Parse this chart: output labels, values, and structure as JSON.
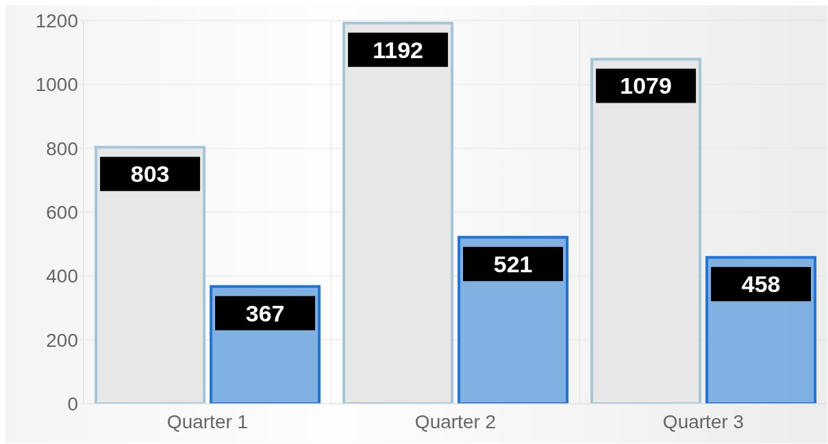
{
  "chart_data": {
    "type": "bar",
    "categories": [
      "Quarter 1",
      "Quarter 2",
      "Quarter 3"
    ],
    "series": [
      {
        "color": "#e6e6e6",
        "values": [
          803,
          1192,
          1079
        ]
      },
      {
        "color": "#7aade0",
        "values": [
          367,
          521,
          458
        ]
      }
    ],
    "ylim": [
      0,
      1200
    ],
    "yticks": [
      0,
      200,
      400,
      600,
      800,
      1000,
      1200
    ],
    "grid": true,
    "data_labels": true
  }
}
